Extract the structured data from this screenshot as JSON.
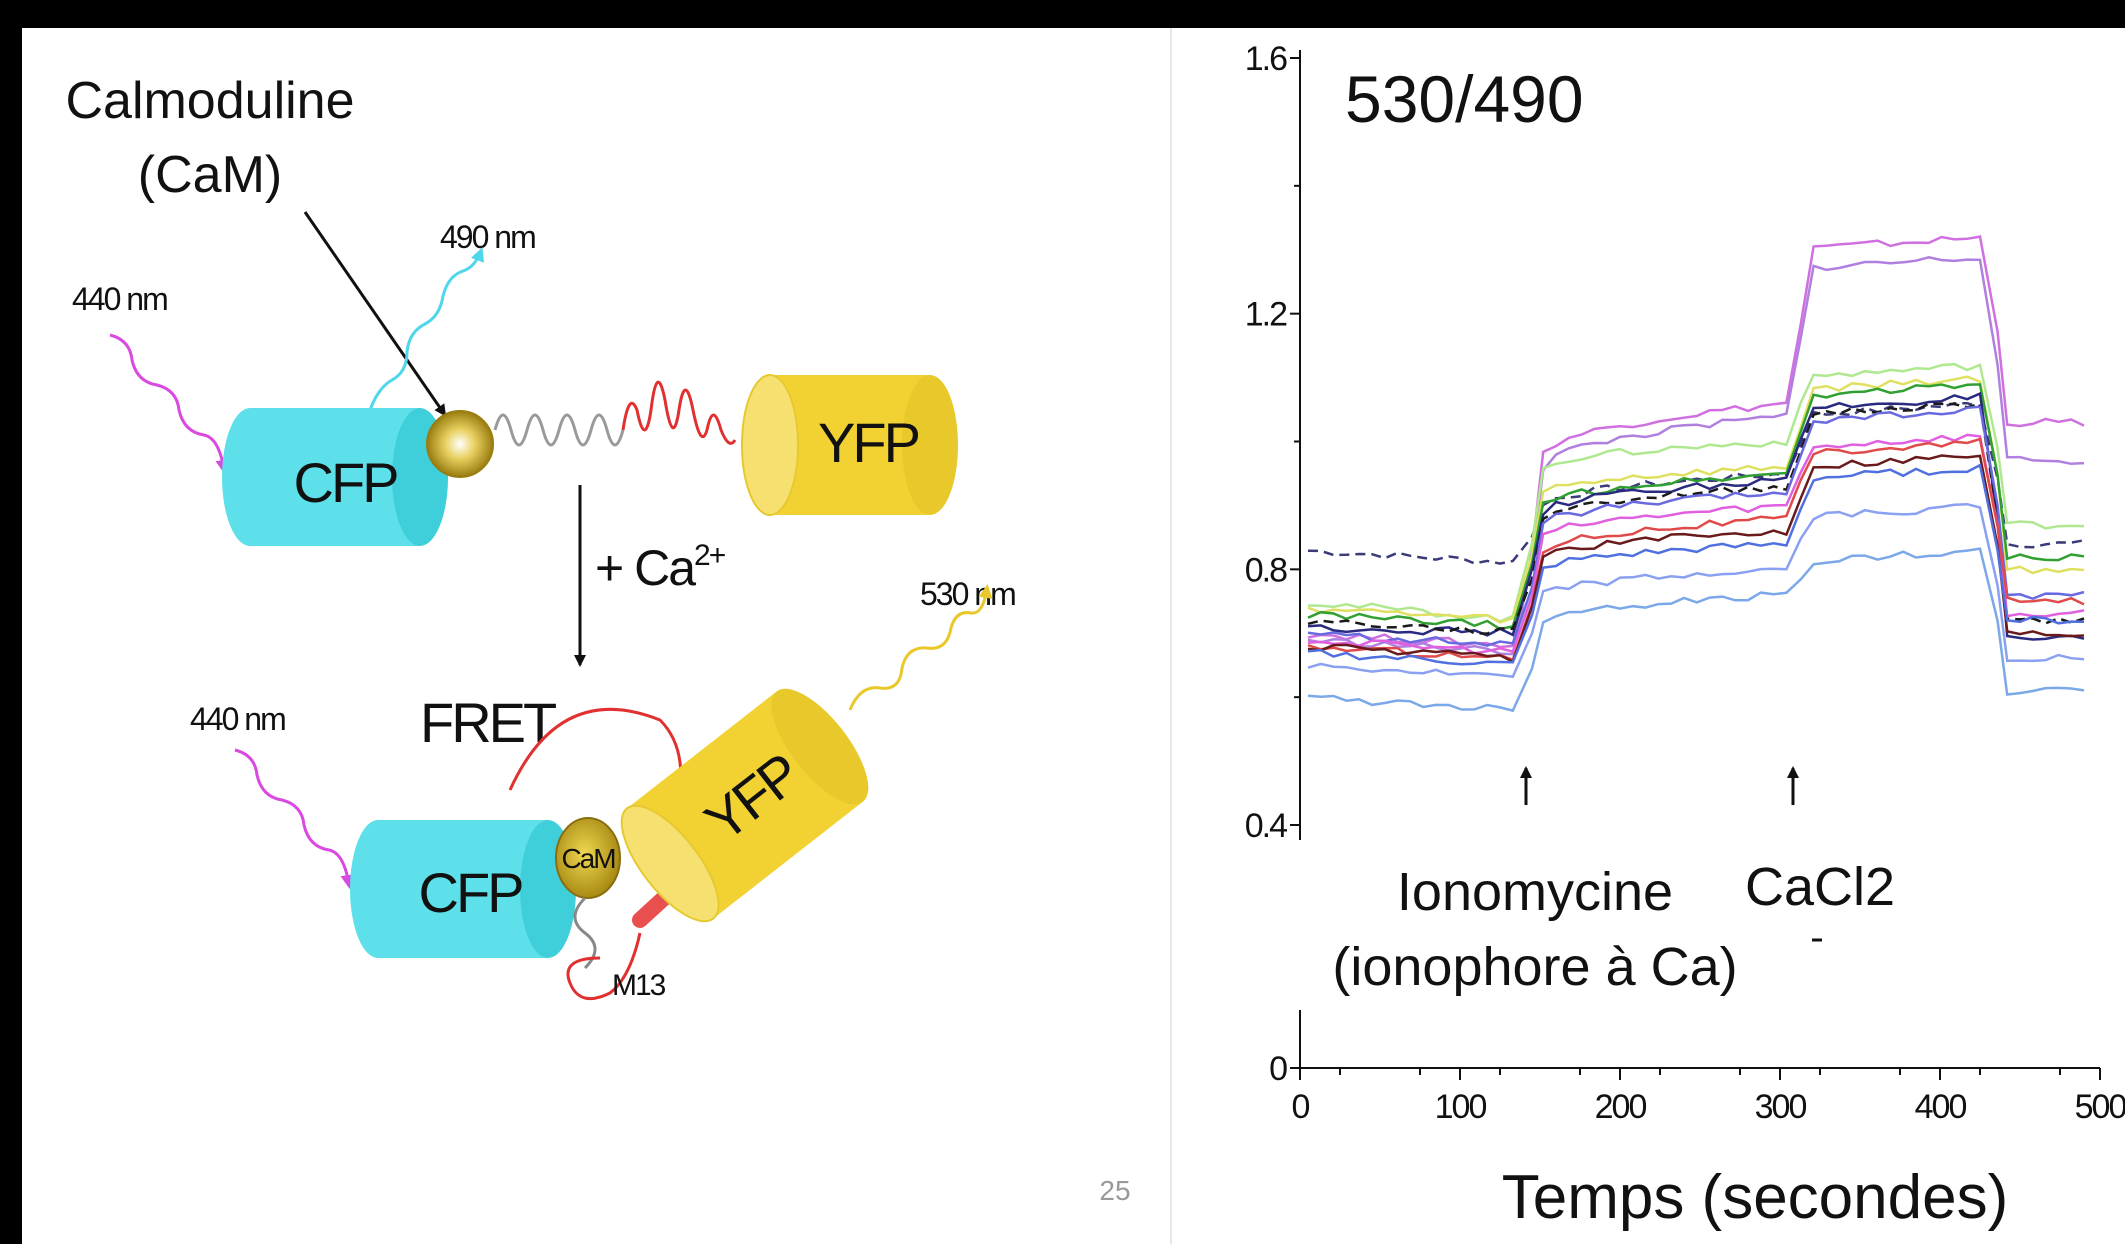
{
  "diagram": {
    "calmodulin_label_line1": "Calmoduline",
    "calmodulin_label_line2": "(CaM)",
    "wl_440_top": "440 nm",
    "wl_490": "490 nm",
    "wl_440_bottom": "440 nm",
    "wl_530": "530 nm",
    "cfp_top": "CFP",
    "yfp_top": "YFP",
    "cfp_bottom": "CFP",
    "yfp_bottom": "YFP",
    "cam_small": "CaM",
    "m13": "M13",
    "fret": "FRET",
    "calcium_prefix": "+ Ca",
    "calcium_superscript": "2+",
    "page_number": "25",
    "colors": {
      "cfp": "#5ee0ea",
      "yfp": "#f2d233",
      "cam": "#c9a820",
      "excitation": "#d94be0",
      "emission_490": "#4fd6ea",
      "emission_530": "#e8c82a",
      "linker_red": "#e03030"
    }
  },
  "chart_data": {
    "type": "line",
    "title": "530/490",
    "xlabel": "Temps (secondes)",
    "ylabel": "",
    "xlim": [
      0,
      500
    ],
    "ylim": [
      0,
      1.6
    ],
    "x_ticks": [
      "0",
      "100",
      "200",
      "300",
      "400",
      "500"
    ],
    "y_ticks": [
      "0",
      "0.4",
      "0.8",
      "1.2",
      "1.6"
    ],
    "annotations": [
      {
        "text": "Ionomycine",
        "x": 140
      },
      {
        "text": "(ionophore à Ca)",
        "x": 140
      },
      {
        "text": "CaCl2",
        "x": 305
      }
    ],
    "baseline_events_x": [
      140,
      305,
      430
    ],
    "series": [
      {
        "color": "#3b3b7a",
        "dashed": true,
        "values": [
          0.83,
          0.81,
          0.9,
          0.95,
          1.05,
          0.84
        ]
      },
      {
        "color": "#d070e0",
        "dashed": false,
        "values": [
          0.7,
          0.68,
          0.98,
          1.06,
          1.31,
          1.03
        ]
      },
      {
        "color": "#b080e0",
        "dashed": false,
        "values": [
          0.69,
          0.67,
          0.96,
          1.04,
          1.28,
          0.97
        ]
      },
      {
        "color": "#b0e890",
        "dashed": false,
        "values": [
          0.75,
          0.72,
          0.96,
          1.0,
          1.11,
          0.87
        ]
      },
      {
        "color": "#e0e060",
        "dashed": false,
        "values": [
          0.74,
          0.72,
          0.92,
          0.96,
          1.09,
          0.8
        ]
      },
      {
        "color": "#30a030",
        "dashed": false,
        "values": [
          0.73,
          0.71,
          0.9,
          0.95,
          1.08,
          0.82
        ]
      },
      {
        "color": "#2a2a80",
        "dashed": false,
        "values": [
          0.71,
          0.7,
          0.89,
          0.94,
          1.06,
          0.69
        ]
      },
      {
        "color": "#1a1a1a",
        "dashed": true,
        "values": [
          0.72,
          0.7,
          0.88,
          0.93,
          1.05,
          0.72
        ]
      },
      {
        "color": "#6a6ae0",
        "dashed": false,
        "values": [
          0.7,
          0.68,
          0.87,
          0.92,
          1.04,
          0.76
        ]
      },
      {
        "color": "#e060e0",
        "dashed": false,
        "values": [
          0.69,
          0.67,
          0.85,
          0.9,
          1.0,
          0.73
        ]
      },
      {
        "color": "#e04a4a",
        "dashed": false,
        "values": [
          0.68,
          0.66,
          0.83,
          0.88,
          0.99,
          0.75
        ]
      },
      {
        "color": "#6a1a1a",
        "dashed": false,
        "values": [
          0.68,
          0.66,
          0.82,
          0.86,
          0.97,
          0.7
        ]
      },
      {
        "color": "#5070e0",
        "dashed": false,
        "values": [
          0.67,
          0.65,
          0.8,
          0.84,
          0.95,
          0.72
        ]
      },
      {
        "color": "#8aa0f0",
        "dashed": false,
        "values": [
          0.65,
          0.63,
          0.76,
          0.8,
          0.89,
          0.66
        ]
      },
      {
        "color": "#7aa8e8",
        "dashed": false,
        "values": [
          0.6,
          0.58,
          0.72,
          0.76,
          0.82,
          0.61
        ]
      }
    ]
  }
}
